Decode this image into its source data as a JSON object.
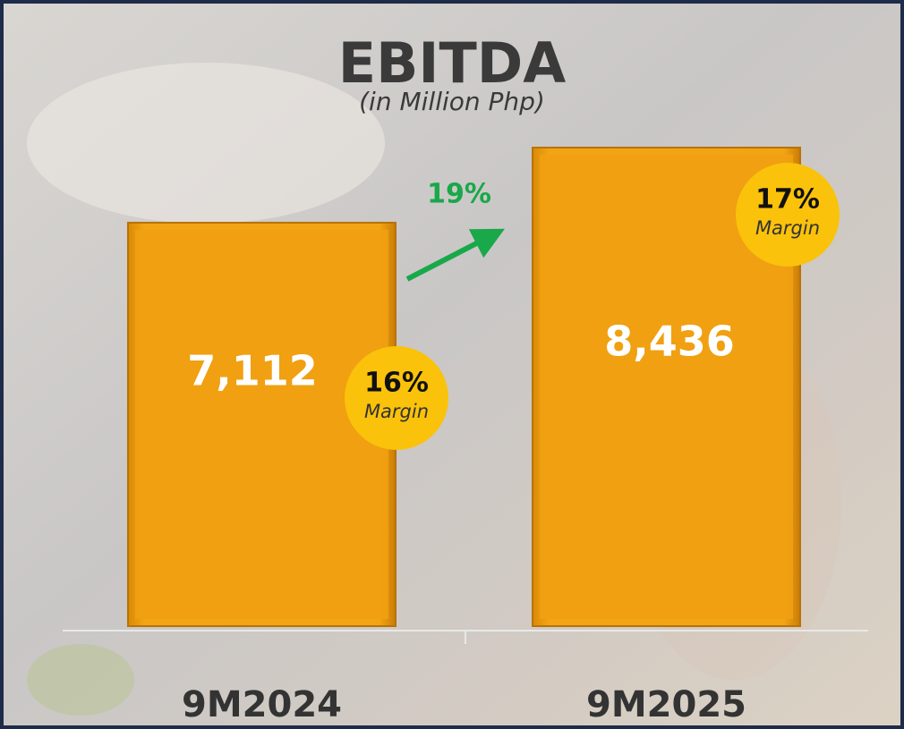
{
  "chart_data": {
    "type": "bar",
    "title": "EBITDA",
    "subtitle": "(in Million Php)",
    "categories": [
      "9M2024",
      "9M2025"
    ],
    "values": [
      7112,
      8436
    ],
    "value_labels": [
      "7,112",
      "8,436"
    ],
    "color": "#F0A011",
    "margins": {
      "values": [
        16,
        17
      ],
      "value_labels": [
        "16%",
        "17%"
      ],
      "caption": "Margin",
      "color": "#FAC20A"
    },
    "growth": {
      "value": 19,
      "label": "19%",
      "color": "#19A84A"
    }
  }
}
